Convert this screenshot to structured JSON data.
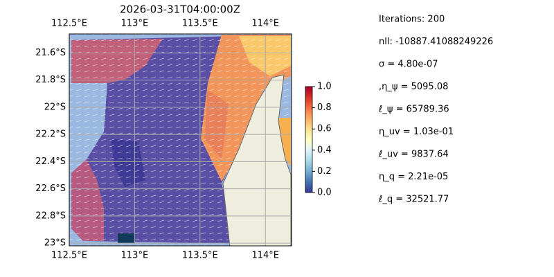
{
  "chart_data": {
    "type": "map",
    "title": "2026-03-31T04:00:00Z",
    "xlim": [
      112.5,
      114.2
    ],
    "ylim": [
      -23.02,
      -21.46
    ],
    "xticks": [
      {
        "value": 112.5,
        "label": "112.5°E"
      },
      {
        "value": 113,
        "label": "113°E"
      },
      {
        "value": 113.5,
        "label": "113.5°E"
      },
      {
        "value": 114,
        "label": "114°E"
      }
    ],
    "yticks": [
      {
        "value": -21.6,
        "label": "21.6°S"
      },
      {
        "value": -21.8,
        "label": "21.8°S"
      },
      {
        "value": -22,
        "label": "22°S"
      },
      {
        "value": -22.2,
        "label": "22.2°S"
      },
      {
        "value": -22.4,
        "label": "22.4°S"
      },
      {
        "value": -22.6,
        "label": "22.6°S"
      },
      {
        "value": -22.8,
        "label": "22.8°S"
      },
      {
        "value": -23,
        "label": "23°S"
      }
    ],
    "grid": true,
    "colorbar": {
      "lim": [
        0,
        1
      ],
      "ticks": [
        {
          "value": 0,
          "label": "0.0"
        },
        {
          "value": 0.2,
          "label": "0.2"
        },
        {
          "value": 0.4,
          "label": "0.4"
        },
        {
          "value": 0.6,
          "label": "0.6"
        },
        {
          "value": 0.8,
          "label": "0.8"
        },
        {
          "value": 1,
          "label": "1.0"
        }
      ]
    },
    "annotations": [
      "Iterations: 200",
      "nll: -10887.41088249226",
      "σ = 4.80e-07",
      ",η_ψ = 5095.08",
      "ℓ_ψ = 65789.36",
      "η_uv = 1.03e-01",
      "ℓ_uv = 9837.64",
      "η_q = 2.21e-05",
      "ℓ_q = 32521.77"
    ]
  }
}
